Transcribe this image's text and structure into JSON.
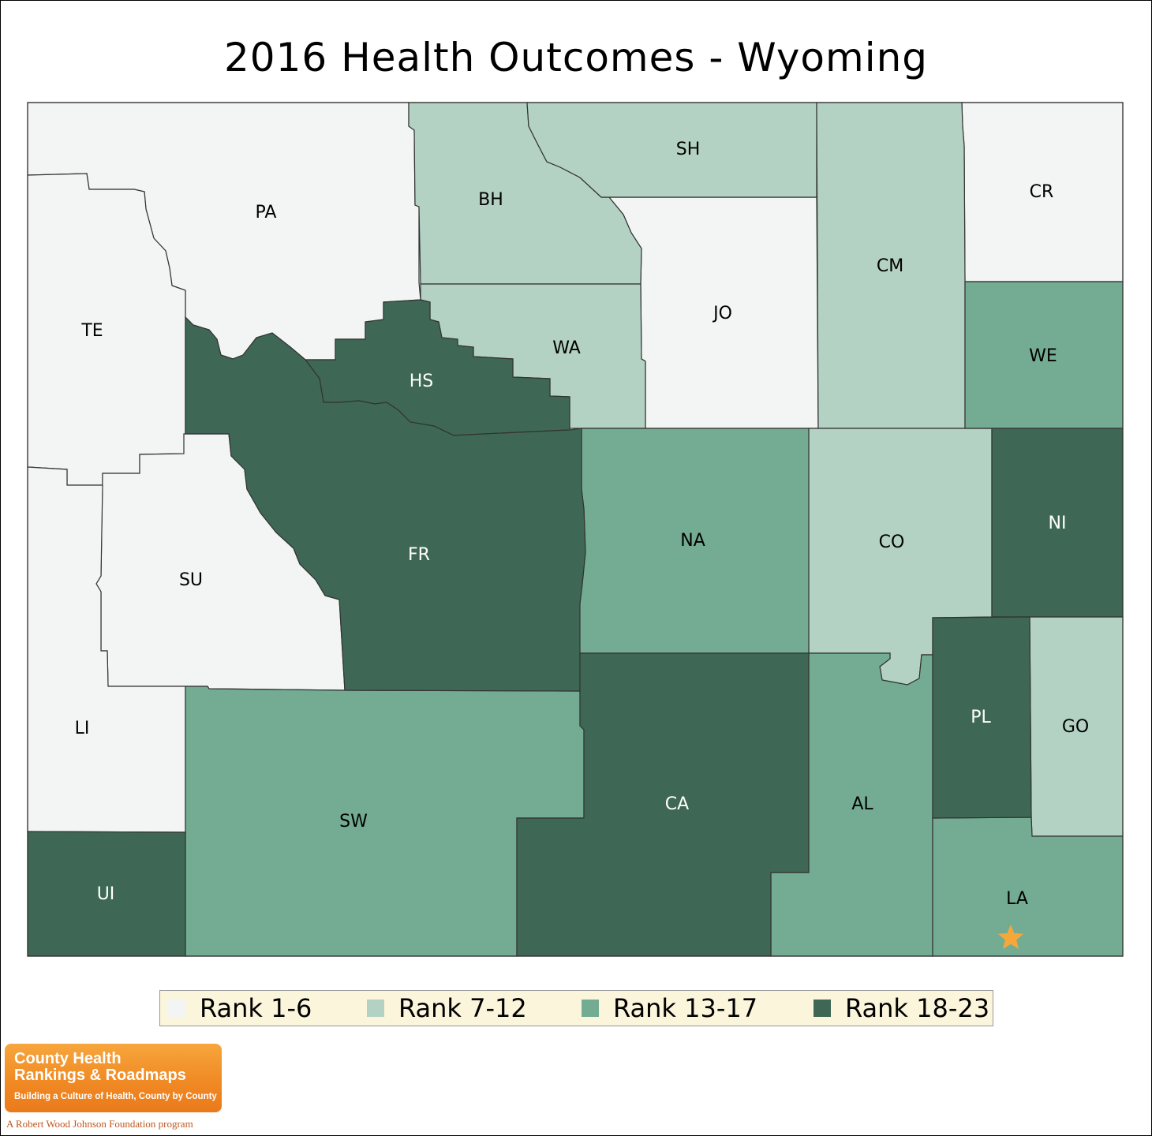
{
  "title": "2016 Health Outcomes - Wyoming",
  "colors": {
    "rank_1_6": "#f2f5f3",
    "rank_7_12": "#b3d2c3",
    "rank_13_17": "#73ac92",
    "rank_18_23": "#3e6855",
    "star": "#f5a73a",
    "legend_bg": "#fbf5dc"
  },
  "legend": [
    {
      "label": "Rank 1-6",
      "color": "#f2f5f3"
    },
    {
      "label": "Rank 7-12",
      "color": "#b3d2c3"
    },
    {
      "label": "Rank 13-17",
      "color": "#73ac92"
    },
    {
      "label": "Rank 18-23",
      "color": "#3e6855"
    }
  ],
  "counties": [
    {
      "abbr": "PA",
      "rank_group": "Rank 1-6"
    },
    {
      "abbr": "TE",
      "rank_group": "Rank 1-6"
    },
    {
      "abbr": "SU",
      "rank_group": "Rank 1-6"
    },
    {
      "abbr": "LI",
      "rank_group": "Rank 1-6"
    },
    {
      "abbr": "JO",
      "rank_group": "Rank 1-6"
    },
    {
      "abbr": "CR",
      "rank_group": "Rank 1-6"
    },
    {
      "abbr": "BH",
      "rank_group": "Rank 7-12"
    },
    {
      "abbr": "SH",
      "rank_group": "Rank 7-12"
    },
    {
      "abbr": "WA",
      "rank_group": "Rank 7-12"
    },
    {
      "abbr": "CM",
      "rank_group": "Rank 7-12"
    },
    {
      "abbr": "CO",
      "rank_group": "Rank 7-12"
    },
    {
      "abbr": "GO",
      "rank_group": "Rank 7-12"
    },
    {
      "abbr": "WE",
      "rank_group": "Rank 13-17"
    },
    {
      "abbr": "NA",
      "rank_group": "Rank 13-17"
    },
    {
      "abbr": "SW",
      "rank_group": "Rank 13-17"
    },
    {
      "abbr": "AL",
      "rank_group": "Rank 13-17"
    },
    {
      "abbr": "LA",
      "rank_group": "Rank 13-17"
    },
    {
      "abbr": "HS",
      "rank_group": "Rank 18-23"
    },
    {
      "abbr": "FR",
      "rank_group": "Rank 18-23"
    },
    {
      "abbr": "NI",
      "rank_group": "Rank 18-23"
    },
    {
      "abbr": "PL",
      "rank_group": "Rank 18-23"
    },
    {
      "abbr": "CA",
      "rank_group": "Rank 18-23"
    },
    {
      "abbr": "UI",
      "rank_group": "Rank 18-23"
    }
  ],
  "marker": {
    "icon": "star-icon",
    "county": "LA"
  },
  "logo": {
    "line1": "County Health",
    "line2": "Rankings & Roadmaps",
    "tagline": "Building a Culture of Health, County by County",
    "foundation": "A Robert Wood Johnson Foundation program"
  }
}
